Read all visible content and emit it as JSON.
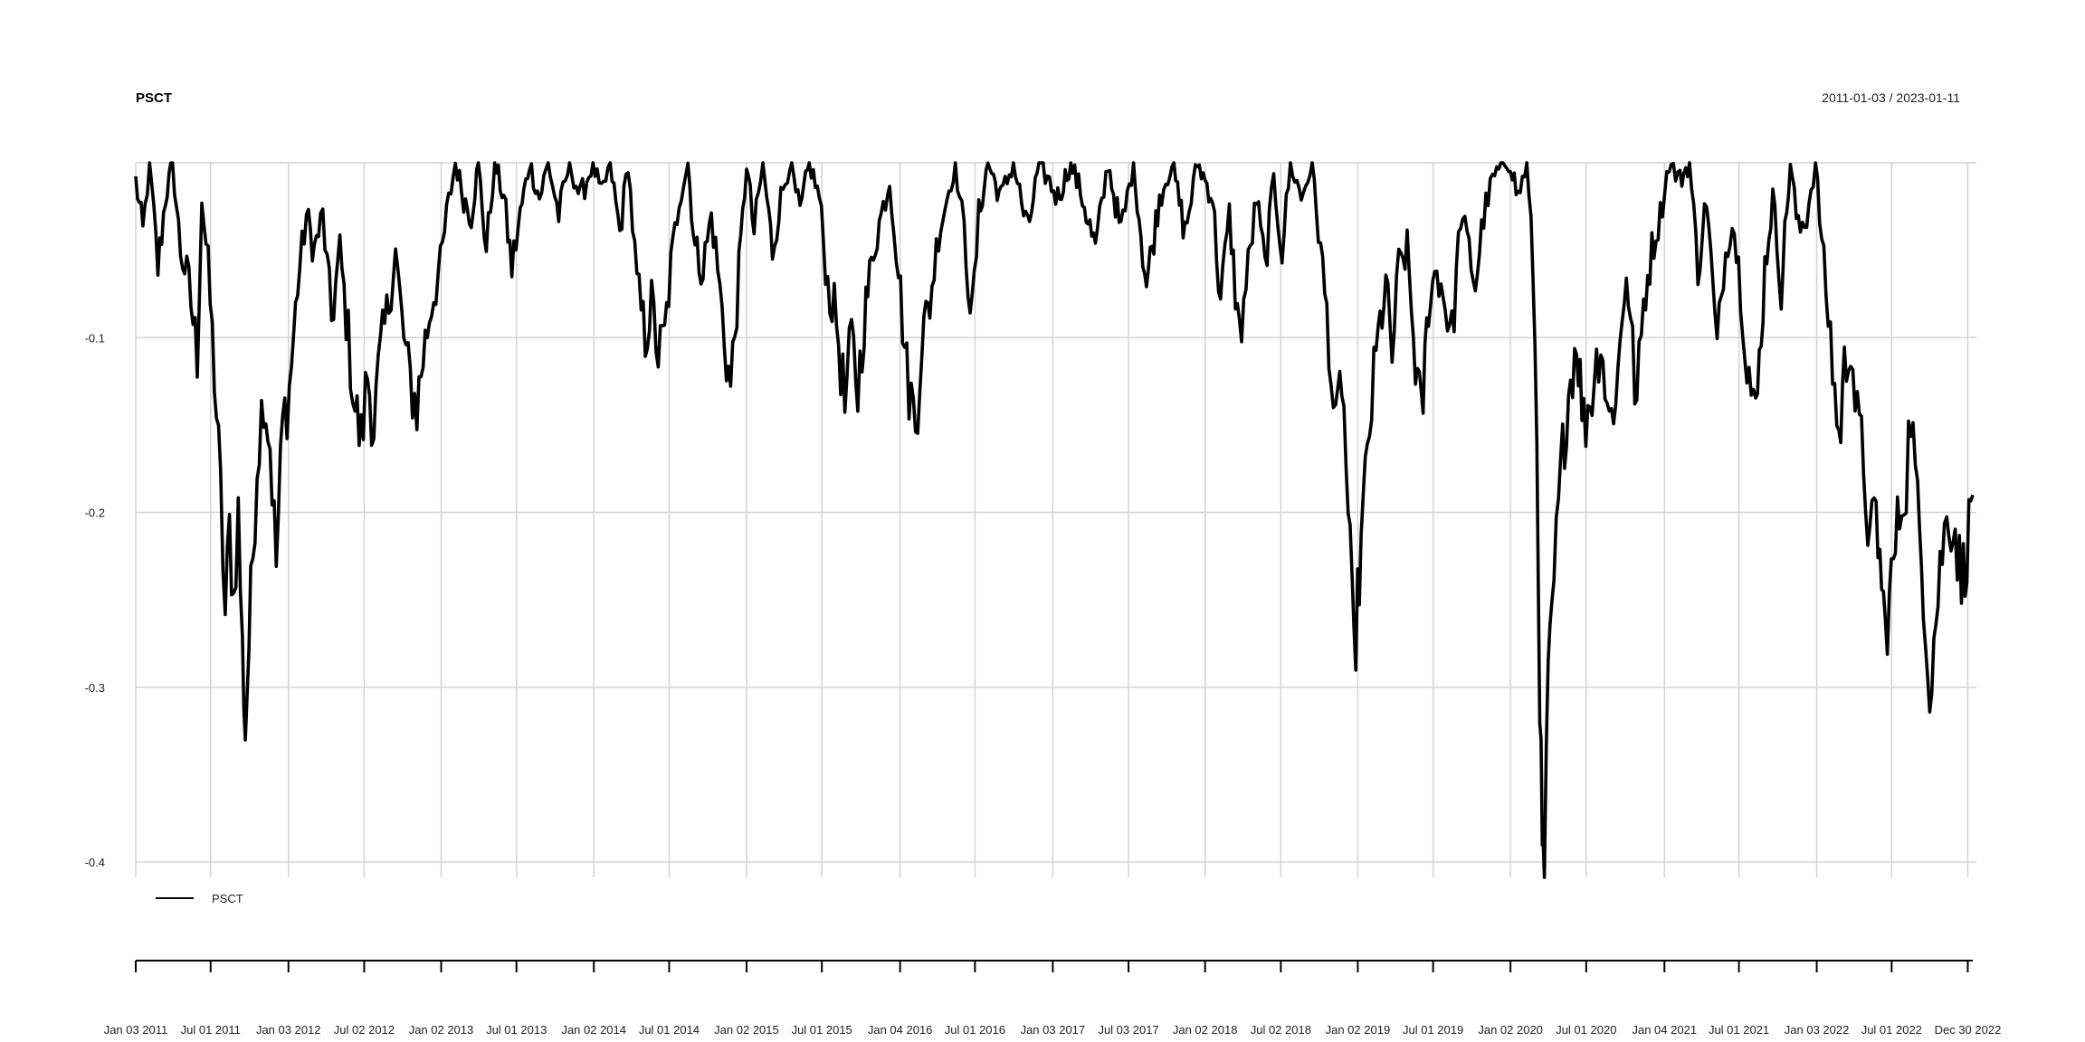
{
  "chart_data": {
    "type": "line",
    "title": "PSCT",
    "date_range_label": "2011-01-03 / 2023-01-11",
    "xlabel": "",
    "ylabel": "",
    "ylim": [
      -0.43,
      0.0
    ],
    "y_ticks": [
      -0.1,
      -0.2,
      -0.3,
      -0.4
    ],
    "y_tick_labels": [
      "-0.1",
      "-0.2",
      "-0.3",
      "-0.4"
    ],
    "x_range": [
      "2011-01-03",
      "2023-01-11"
    ],
    "x_ticks": [
      "2011-01-03",
      "2011-07-01",
      "2012-01-03",
      "2012-07-02",
      "2013-01-02",
      "2013-07-01",
      "2014-01-02",
      "2014-07-01",
      "2015-01-02",
      "2015-07-01",
      "2016-01-04",
      "2016-07-01",
      "2017-01-03",
      "2017-07-03",
      "2018-01-02",
      "2018-07-02",
      "2019-01-02",
      "2019-07-01",
      "2020-01-02",
      "2020-07-01",
      "2021-01-04",
      "2021-07-01",
      "2022-01-03",
      "2022-07-01",
      "2022-12-30"
    ],
    "x_tick_labels": [
      "Jan 03 2011",
      "Jul 01 2011",
      "Jan 03 2012",
      "Jul 02 2012",
      "Jan 02 2013",
      "Jul 01 2013",
      "Jan 02 2014",
      "Jul 01 2014",
      "Jan 02 2015",
      "Jul 01 2015",
      "Jan 04 2016",
      "Jul 01 2016",
      "Jan 03 2017",
      "Jul 03 2017",
      "Jan 02 2018",
      "Jul 02 2018",
      "Jan 02 2019",
      "Jul 01 2019",
      "Jan 02 2020",
      "Jul 01 2020",
      "Jan 04 2021",
      "Jul 01 2021",
      "Jan 03 2022",
      "Jul 01 2022",
      "Dec 30 2022"
    ],
    "grid": true,
    "legend": {
      "position": "bottom-left",
      "entries": [
        "PSCT"
      ]
    },
    "series": [
      {
        "name": "PSCT",
        "color": "#000000",
        "points": [
          [
            "2011-01-03",
            -0.01
          ],
          [
            "2011-01-20",
            -0.04
          ],
          [
            "2011-02-05",
            0.0
          ],
          [
            "2011-02-25",
            -0.06
          ],
          [
            "2011-03-15",
            -0.02
          ],
          [
            "2011-04-01",
            0.0
          ],
          [
            "2011-04-20",
            -0.05
          ],
          [
            "2011-05-10",
            -0.07
          ],
          [
            "2011-05-30",
            -0.11
          ],
          [
            "2011-06-10",
            -0.02
          ],
          [
            "2011-06-25",
            -0.06
          ],
          [
            "2011-07-10",
            -0.12
          ],
          [
            "2011-07-25",
            -0.19
          ],
          [
            "2011-08-05",
            -0.26
          ],
          [
            "2011-08-15",
            -0.21
          ],
          [
            "2011-08-25",
            -0.25
          ],
          [
            "2011-09-05",
            -0.2
          ],
          [
            "2011-09-15",
            -0.28
          ],
          [
            "2011-09-22",
            -0.325
          ],
          [
            "2011-10-05",
            -0.25
          ],
          [
            "2011-10-20",
            -0.17
          ],
          [
            "2011-11-05",
            -0.13
          ],
          [
            "2011-11-20",
            -0.16
          ],
          [
            "2011-12-05",
            -0.23
          ],
          [
            "2011-12-20",
            -0.15
          ],
          [
            "2012-01-05",
            -0.13
          ],
          [
            "2012-01-25",
            -0.07
          ],
          [
            "2012-02-15",
            -0.03
          ],
          [
            "2012-03-05",
            -0.05
          ],
          [
            "2012-03-25",
            -0.03
          ],
          [
            "2012-04-15",
            -0.09
          ],
          [
            "2012-05-05",
            -0.05
          ],
          [
            "2012-05-25",
            -0.1
          ],
          [
            "2012-06-10",
            -0.14
          ],
          [
            "2012-06-25",
            -0.16
          ],
          [
            "2012-07-10",
            -0.12
          ],
          [
            "2012-07-25",
            -0.15
          ],
          [
            "2012-08-10",
            -0.11
          ],
          [
            "2012-08-30",
            -0.08
          ],
          [
            "2012-09-15",
            -0.05
          ],
          [
            "2012-09-30",
            -0.09
          ],
          [
            "2012-10-15",
            -0.12
          ],
          [
            "2012-11-05",
            -0.14
          ],
          [
            "2012-11-20",
            -0.11
          ],
          [
            "2012-12-10",
            -0.08
          ],
          [
            "2012-12-31",
            -0.06
          ],
          [
            "2013-01-15",
            -0.03
          ],
          [
            "2013-02-05",
            0.0
          ],
          [
            "2013-02-25",
            -0.02
          ],
          [
            "2013-03-15",
            -0.03
          ],
          [
            "2013-04-01",
            0.0
          ],
          [
            "2013-04-20",
            -0.05
          ],
          [
            "2013-05-10",
            0.0
          ],
          [
            "2013-06-01",
            -0.02
          ],
          [
            "2013-06-20",
            -0.06
          ],
          [
            "2013-07-10",
            -0.03
          ],
          [
            "2013-08-01",
            0.0
          ],
          [
            "2013-08-25",
            -0.02
          ],
          [
            "2013-09-15",
            0.0
          ],
          [
            "2013-10-10",
            -0.03
          ],
          [
            "2013-11-05",
            0.0
          ],
          [
            "2013-12-01",
            -0.02
          ],
          [
            "2013-12-31",
            0.0
          ],
          [
            "2014-01-20",
            -0.02
          ],
          [
            "2014-02-10",
            0.0
          ],
          [
            "2014-03-05",
            -0.04
          ],
          [
            "2014-03-25",
            0.0
          ],
          [
            "2014-04-15",
            -0.07
          ],
          [
            "2014-05-05",
            -0.1
          ],
          [
            "2014-05-20",
            -0.08
          ],
          [
            "2014-06-05",
            -0.11
          ],
          [
            "2014-06-20",
            -0.1
          ],
          [
            "2014-07-05",
            -0.06
          ],
          [
            "2014-07-25",
            -0.02
          ],
          [
            "2014-08-15",
            0.0
          ],
          [
            "2014-09-01",
            -0.05
          ],
          [
            "2014-09-20",
            -0.06
          ],
          [
            "2014-10-10",
            -0.03
          ],
          [
            "2014-10-25",
            -0.06
          ],
          [
            "2014-11-10",
            -0.1
          ],
          [
            "2014-11-25",
            -0.13
          ],
          [
            "2014-12-10",
            -0.08
          ],
          [
            "2015-01-02",
            0.0
          ],
          [
            "2015-01-20",
            -0.04
          ],
          [
            "2015-02-10",
            0.0
          ],
          [
            "2015-03-05",
            -0.05
          ],
          [
            "2015-03-25",
            -0.02
          ],
          [
            "2015-04-15",
            0.0
          ],
          [
            "2015-05-10",
            -0.03
          ],
          [
            "2015-06-01",
            0.0
          ],
          [
            "2015-06-25",
            -0.02
          ],
          [
            "2015-07-15",
            -0.07
          ],
          [
            "2015-08-05",
            -0.09
          ],
          [
            "2015-08-25",
            -0.14
          ],
          [
            "2015-09-10",
            -0.1
          ],
          [
            "2015-09-25",
            -0.13
          ],
          [
            "2015-10-10",
            -0.09
          ],
          [
            "2015-11-01",
            -0.05
          ],
          [
            "2015-11-20",
            -0.03
          ],
          [
            "2015-12-10",
            -0.01
          ],
          [
            "2015-12-31",
            -0.06
          ],
          [
            "2016-01-20",
            -0.12
          ],
          [
            "2016-02-10",
            -0.15
          ],
          [
            "2016-02-25",
            -0.1
          ],
          [
            "2016-03-15",
            -0.08
          ],
          [
            "2016-04-05",
            -0.04
          ],
          [
            "2016-04-25",
            -0.02
          ],
          [
            "2016-05-15",
            0.0
          ],
          [
            "2016-06-05",
            -0.04
          ],
          [
            "2016-06-24",
            -0.09
          ],
          [
            "2016-07-10",
            -0.03
          ],
          [
            "2016-08-01",
            0.0
          ],
          [
            "2016-09-01",
            -0.02
          ],
          [
            "2016-10-01",
            0.0
          ],
          [
            "2016-11-04",
            -0.04
          ],
          [
            "2016-12-01",
            0.0
          ],
          [
            "2017-01-15",
            -0.02
          ],
          [
            "2017-02-15",
            0.0
          ],
          [
            "2017-03-15",
            -0.02
          ],
          [
            "2017-04-15",
            -0.05
          ],
          [
            "2017-05-15",
            0.0
          ],
          [
            "2017-06-15",
            -0.04
          ],
          [
            "2017-07-15",
            0.0
          ],
          [
            "2017-08-15",
            -0.07
          ],
          [
            "2017-09-15",
            -0.02
          ],
          [
            "2017-10-15",
            0.0
          ],
          [
            "2017-11-15",
            -0.04
          ],
          [
            "2017-12-15",
            0.0
          ],
          [
            "2018-01-20",
            -0.02
          ],
          [
            "2018-02-08",
            -0.08
          ],
          [
            "2018-03-01",
            -0.03
          ],
          [
            "2018-03-25",
            -0.1
          ],
          [
            "2018-04-15",
            -0.06
          ],
          [
            "2018-05-05",
            -0.02
          ],
          [
            "2018-05-25",
            -0.06
          ],
          [
            "2018-06-15",
            -0.01
          ],
          [
            "2018-07-05",
            -0.05
          ],
          [
            "2018-07-25",
            0.0
          ],
          [
            "2018-08-20",
            -0.02
          ],
          [
            "2018-09-15",
            0.0
          ],
          [
            "2018-10-05",
            -0.05
          ],
          [
            "2018-10-25",
            -0.1
          ],
          [
            "2018-11-10",
            -0.16
          ],
          [
            "2018-11-25",
            -0.12
          ],
          [
            "2018-12-10",
            -0.2
          ],
          [
            "2018-12-24",
            -0.285
          ],
          [
            "2019-01-10",
            -0.22
          ],
          [
            "2019-01-30",
            -0.15
          ],
          [
            "2019-02-20",
            -0.1
          ],
          [
            "2019-03-10",
            -0.07
          ],
          [
            "2019-03-25",
            -0.11
          ],
          [
            "2019-04-10",
            -0.06
          ],
          [
            "2019-04-30",
            -0.05
          ],
          [
            "2019-05-15",
            -0.1
          ],
          [
            "2019-06-03",
            -0.15
          ],
          [
            "2019-06-20",
            -0.08
          ],
          [
            "2019-07-10",
            -0.06
          ],
          [
            "2019-07-30",
            -0.08
          ],
          [
            "2019-08-15",
            -0.1
          ],
          [
            "2019-09-05",
            -0.03
          ],
          [
            "2019-09-25",
            -0.05
          ],
          [
            "2019-10-10",
            -0.07
          ],
          [
            "2019-10-30",
            -0.03
          ],
          [
            "2019-11-20",
            -0.01
          ],
          [
            "2019-12-15",
            0.0
          ],
          [
            "2020-01-02",
            0.0
          ],
          [
            "2020-01-20",
            -0.02
          ],
          [
            "2020-02-10",
            0.0
          ],
          [
            "2020-02-25",
            -0.06
          ],
          [
            "2020-03-05",
            -0.16
          ],
          [
            "2020-03-12",
            -0.3
          ],
          [
            "2020-03-18",
            -0.4
          ],
          [
            "2020-03-23",
            -0.405
          ],
          [
            "2020-04-01",
            -0.3
          ],
          [
            "2020-04-15",
            -0.24
          ],
          [
            "2020-05-01",
            -0.18
          ],
          [
            "2020-05-15",
            -0.14
          ],
          [
            "2020-06-08",
            -0.1
          ],
          [
            "2020-06-25",
            -0.15
          ],
          [
            "2020-07-15",
            -0.13
          ],
          [
            "2020-08-05",
            -0.1
          ],
          [
            "2020-08-25",
            -0.15
          ],
          [
            "2020-09-15",
            -0.12
          ],
          [
            "2020-10-05",
            -0.06
          ],
          [
            "2020-10-30",
            -0.14
          ],
          [
            "2020-11-15",
            -0.08
          ],
          [
            "2020-12-05",
            -0.05
          ],
          [
            "2020-12-25",
            -0.03
          ],
          [
            "2021-01-15",
            0.0
          ],
          [
            "2021-02-10",
            -0.01
          ],
          [
            "2021-03-05",
            0.0
          ],
          [
            "2021-03-25",
            -0.06
          ],
          [
            "2021-04-15",
            -0.02
          ],
          [
            "2021-05-10",
            -0.11
          ],
          [
            "2021-05-25",
            -0.06
          ],
          [
            "2021-06-15",
            -0.03
          ],
          [
            "2021-07-05",
            -0.07
          ],
          [
            "2021-07-20",
            -0.11
          ],
          [
            "2021-08-10",
            -0.15
          ],
          [
            "2021-09-01",
            -0.06
          ],
          [
            "2021-09-20",
            -0.02
          ],
          [
            "2021-10-10",
            -0.07
          ],
          [
            "2021-11-01",
            0.0
          ],
          [
            "2021-11-20",
            -0.04
          ],
          [
            "2021-12-10",
            -0.03
          ],
          [
            "2021-12-31",
            0.0
          ],
          [
            "2022-01-20",
            -0.06
          ],
          [
            "2022-02-05",
            -0.1
          ],
          [
            "2022-02-25",
            -0.16
          ],
          [
            "2022-03-10",
            -0.12
          ],
          [
            "2022-03-25",
            -0.1
          ],
          [
            "2022-04-10",
            -0.15
          ],
          [
            "2022-04-25",
            -0.17
          ],
          [
            "2022-05-10",
            -0.22
          ],
          [
            "2022-05-25",
            -0.2
          ],
          [
            "2022-06-16",
            -0.27
          ],
          [
            "2022-07-05",
            -0.23
          ],
          [
            "2022-07-20",
            -0.2
          ],
          [
            "2022-08-05",
            -0.18
          ],
          [
            "2022-08-16",
            -0.14
          ],
          [
            "2022-09-01",
            -0.2
          ],
          [
            "2022-09-15",
            -0.24
          ],
          [
            "2022-09-30",
            -0.3
          ],
          [
            "2022-10-15",
            -0.26
          ],
          [
            "2022-10-30",
            -0.22
          ],
          [
            "2022-11-15",
            -0.2
          ],
          [
            "2022-11-30",
            -0.21
          ],
          [
            "2022-12-15",
            -0.24
          ],
          [
            "2022-12-28",
            -0.22
          ],
          [
            "2023-01-11",
            -0.19
          ]
        ]
      }
    ]
  }
}
